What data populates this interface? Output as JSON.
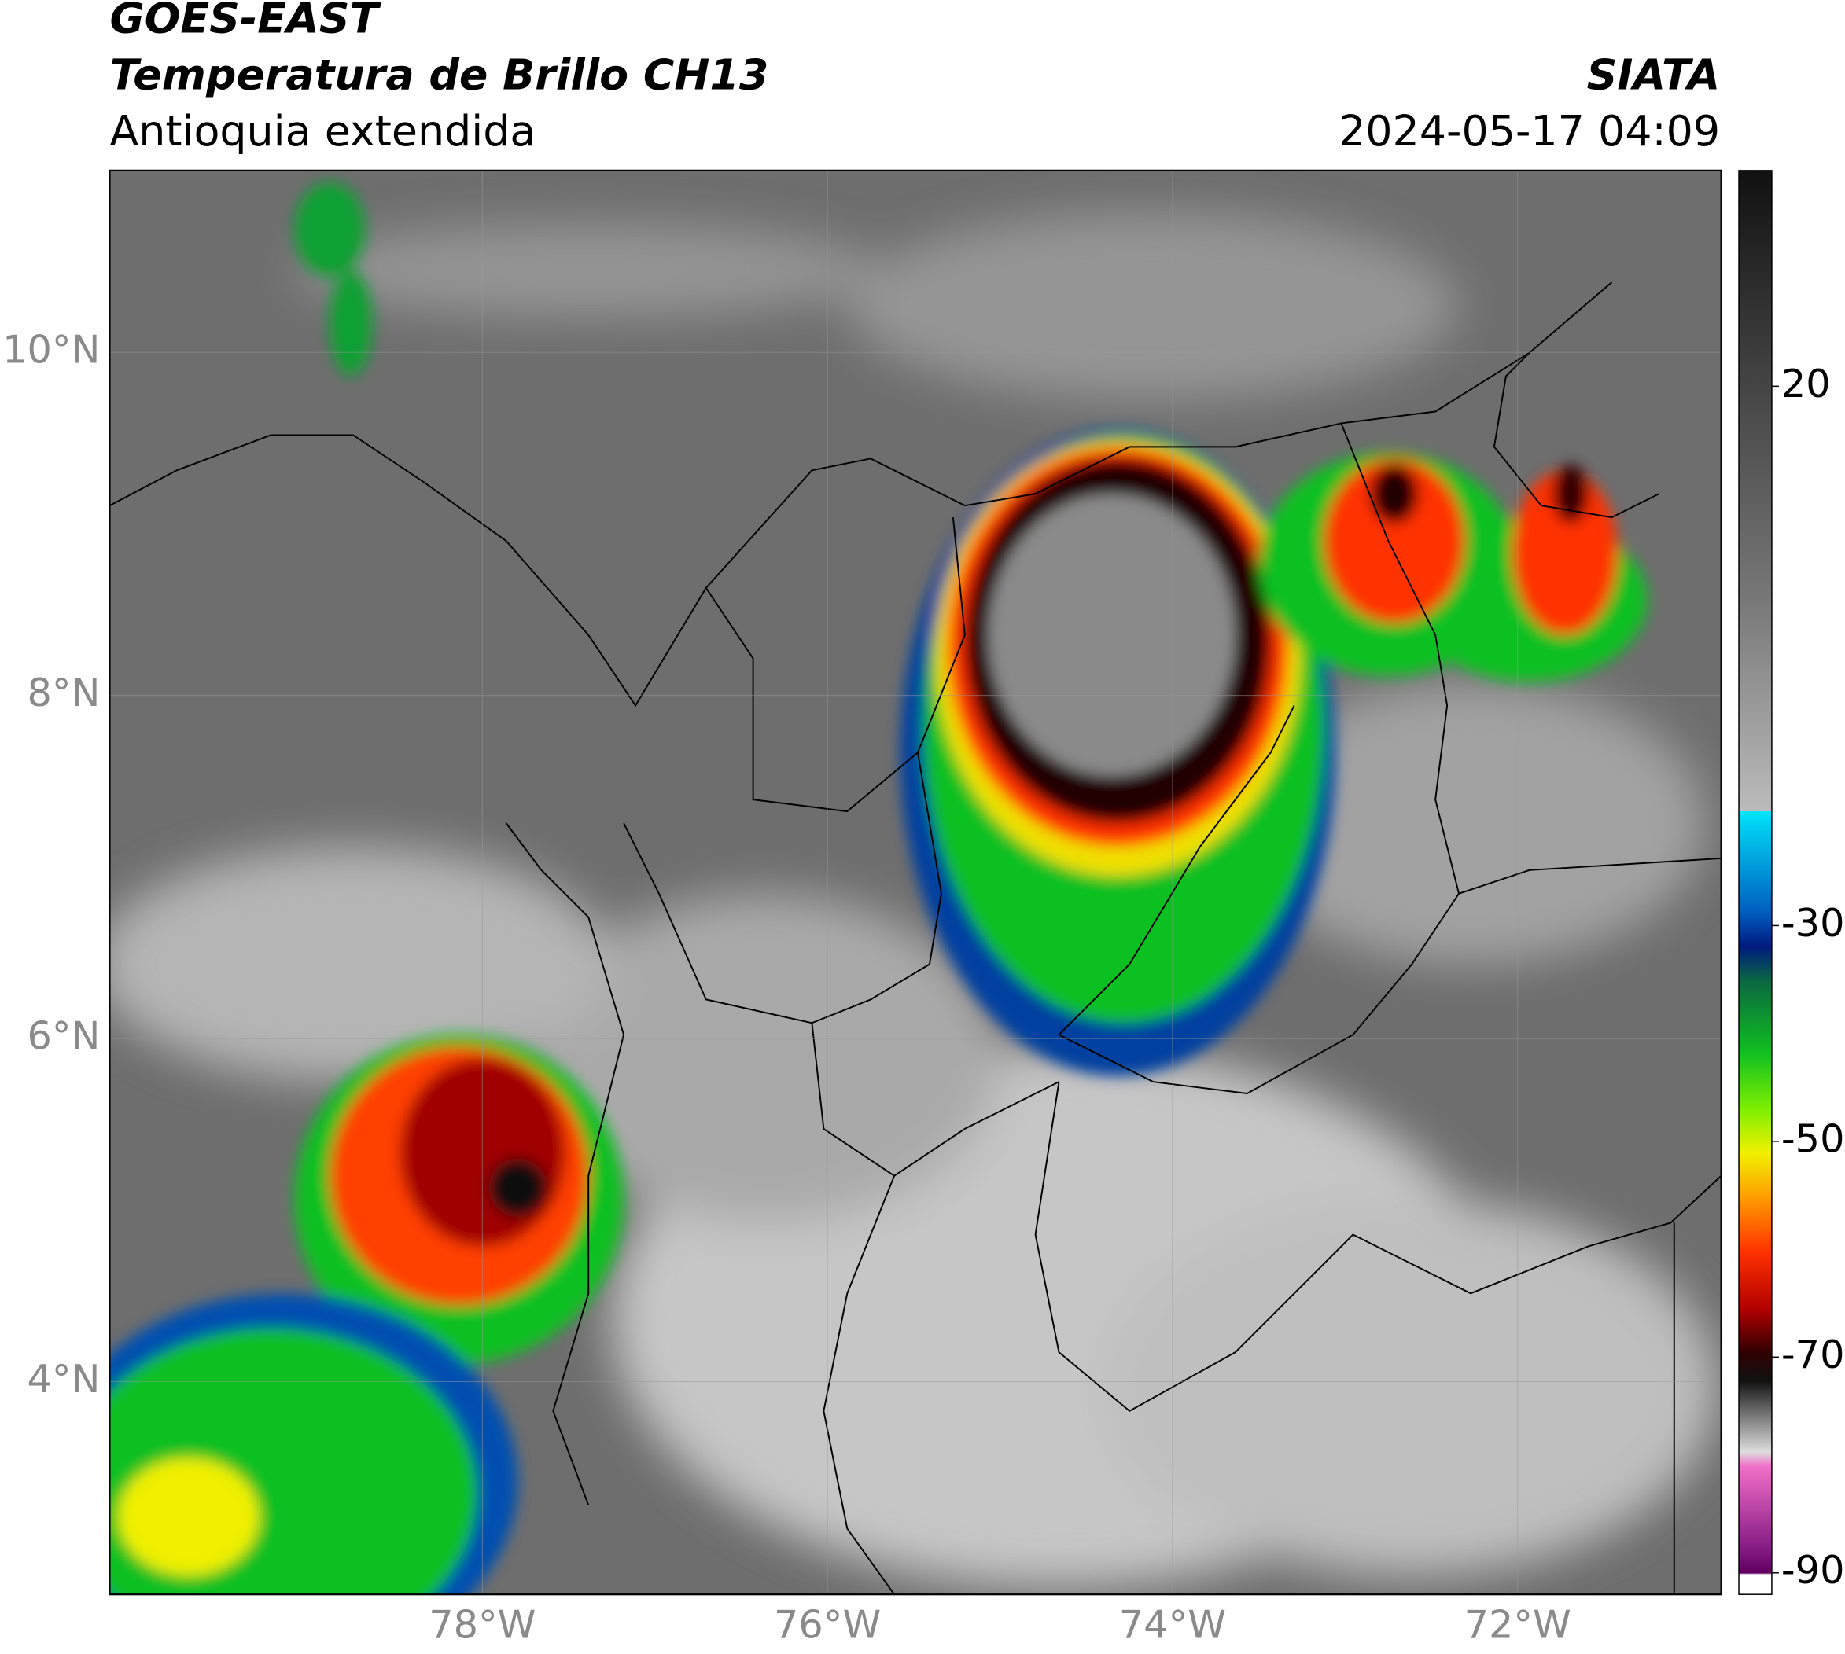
{
  "header": {
    "title_line1": "GOES-EAST",
    "title_line2": "Temperatura de Brillo CH13",
    "subtitle": "Antioquia extendida",
    "organization": "SIATA",
    "datetime": "2024-05-17 04:09"
  },
  "map": {
    "xlim": [
      -80.16,
      -70.82
    ],
    "ylim": [
      2.76,
      11.06
    ],
    "xticks": [
      {
        "value": -78,
        "label": "78°W"
      },
      {
        "value": -76,
        "label": "76°W"
      },
      {
        "value": -74,
        "label": "74°W"
      },
      {
        "value": -72,
        "label": "72°W"
      }
    ],
    "yticks": [
      {
        "value": 4,
        "label": "4°N"
      },
      {
        "value": 6,
        "label": "6°N"
      },
      {
        "value": 8,
        "label": "8°N"
      },
      {
        "value": 10,
        "label": "10°N"
      }
    ],
    "grid": true
  },
  "colorbar": {
    "lim": [
      -92,
      40
    ],
    "ticks": [
      20,
      -30,
      -50,
      -70,
      -90
    ]
  }
}
